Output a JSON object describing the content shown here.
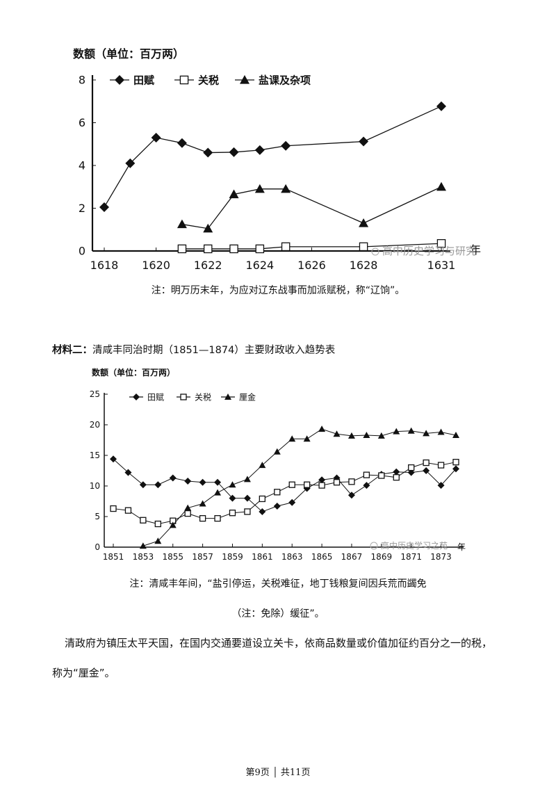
{
  "chart1": {
    "ylabel": "数额（单位：百万两）",
    "legend": [
      "田赋",
      "关税",
      "盐课及杂项"
    ],
    "note": "注：明万历末年，为应对辽东战事而加派赋税，称“辽饷”。",
    "watermark": "高中历史学习与研究",
    "x_suffix": "年"
  },
  "chart2": {
    "heading_label": "材料二：",
    "heading_text": "清咸丰同治时期（1851—1874）主要财政收入趋势表",
    "ylabel": "数额（单位：百万两）",
    "legend": [
      "田赋",
      "关税",
      "厘金"
    ],
    "note_line1": "注：清咸丰年间，“盐引停运，关税难征，地丁钱粮复间因兵荒而蠲免",
    "note_line2": "（注：免除）缓征”。",
    "watermark": "高中历史学习之苑",
    "x_suffix": "年"
  },
  "paragraph": {
    "line1": "清政府为镇压太平天国，在国内交通要道设立关卡，依商品数量或价值加征约百分之一的税，",
    "line2": "称为“厘金”。"
  },
  "footer": {
    "text": "第9页 │ 共11页"
  },
  "chart_data": [
    {
      "type": "line",
      "ylabel": "数额（单位：百万两）",
      "xlim": [
        1618,
        1631
      ],
      "ylim": [
        0,
        8
      ],
      "x_ticks": [
        1618,
        1620,
        1622,
        1624,
        1626,
        1628,
        1631
      ],
      "y_ticks": [
        0,
        2,
        4,
        6,
        8
      ],
      "legend_position": "top-left",
      "series": [
        {
          "name": "田赋",
          "marker": "diamond",
          "x": [
            1618,
            1619,
            1620,
            1621,
            1622,
            1623,
            1624,
            1625,
            1628,
            1631
          ],
          "y": [
            2.05,
            4.1,
            5.3,
            5.05,
            4.6,
            4.62,
            4.72,
            4.92,
            5.12,
            6.77
          ]
        },
        {
          "name": "关税",
          "marker": "square",
          "x": [
            1621,
            1622,
            1623,
            1624,
            1625,
            1628,
            1631
          ],
          "y": [
            0.1,
            0.1,
            0.1,
            0.1,
            0.2,
            0.2,
            0.35
          ]
        },
        {
          "name": "盐课及杂项",
          "marker": "triangle",
          "x": [
            1621,
            1622,
            1623,
            1624,
            1625,
            1628,
            1631
          ],
          "y": [
            1.25,
            1.05,
            2.65,
            2.9,
            2.9,
            1.3,
            3.0
          ]
        }
      ]
    },
    {
      "type": "line",
      "title": "清咸丰同治时期（1851—1874）主要财政收入趋势表",
      "ylabel": "数额（单位：百万两）",
      "xlim": [
        1851,
        1875
      ],
      "ylim": [
        0,
        25
      ],
      "x_ticks": [
        1851,
        1853,
        1855,
        1857,
        1859,
        1861,
        1863,
        1865,
        1867,
        1869,
        1871,
        1873
      ],
      "y_ticks": [
        0,
        5,
        10,
        15,
        20,
        25
      ],
      "legend_position": "top-left",
      "series": [
        {
          "name": "田赋",
          "marker": "diamond",
          "x": [
            1851,
            1852,
            1853,
            1854,
            1855,
            1856,
            1857,
            1858,
            1859,
            1860,
            1861,
            1862,
            1863,
            1864,
            1865,
            1866,
            1867,
            1868,
            1869,
            1870,
            1871,
            1872,
            1873,
            1874
          ],
          "y": [
            14.4,
            12.2,
            10.2,
            10.2,
            11.3,
            10.8,
            10.6,
            10.6,
            8.0,
            8.0,
            5.8,
            6.7,
            7.3,
            9.6,
            11.0,
            11.3,
            8.5,
            10.1,
            11.9,
            12.3,
            12.2,
            12.5,
            10.1,
            12.8
          ]
        },
        {
          "name": "关税",
          "marker": "square",
          "x": [
            1851,
            1852,
            1853,
            1854,
            1855,
            1856,
            1857,
            1858,
            1859,
            1860,
            1861,
            1862,
            1863,
            1864,
            1865,
            1866,
            1867,
            1868,
            1869,
            1870,
            1871,
            1872,
            1873,
            1874
          ],
          "y": [
            6.3,
            6.0,
            4.4,
            3.8,
            4.3,
            5.5,
            4.7,
            4.7,
            5.6,
            5.8,
            7.9,
            9.0,
            10.2,
            10.2,
            10.1,
            10.6,
            10.7,
            11.8,
            11.7,
            11.4,
            13.0,
            13.8,
            13.4,
            13.9
          ]
        },
        {
          "name": "厘金",
          "marker": "triangle",
          "x": [
            1853,
            1854,
            1855,
            1856,
            1857,
            1858,
            1859,
            1860,
            1861,
            1862,
            1863,
            1864,
            1865,
            1866,
            1867,
            1868,
            1869,
            1870,
            1871,
            1872,
            1873,
            1874
          ],
          "y": [
            0.2,
            1.0,
            3.6,
            6.4,
            7.1,
            8.9,
            10.2,
            11.1,
            13.4,
            15.6,
            17.7,
            17.7,
            19.3,
            18.5,
            18.2,
            18.3,
            18.2,
            18.9,
            19.0,
            18.6,
            18.8,
            18.3
          ]
        }
      ]
    }
  ]
}
